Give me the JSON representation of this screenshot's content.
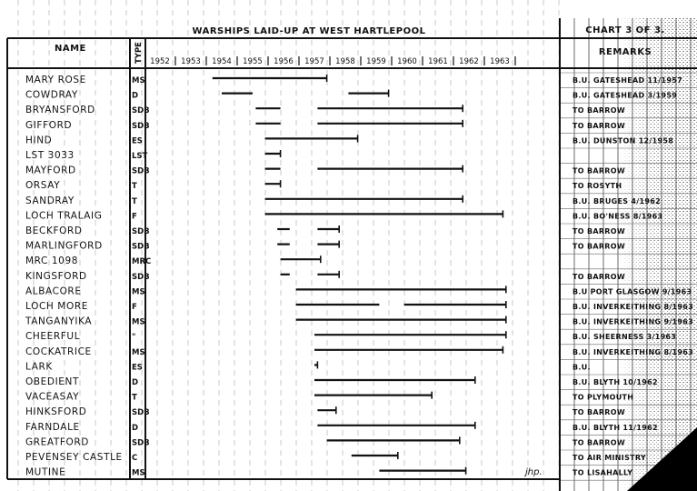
{
  "header": {
    "title": "WARSHIPS LAID-UP AT WEST HARTLEPOOL",
    "chart_number": "CHART 3 OF 3.",
    "name_col": "NAME",
    "type_col": "TYPE",
    "remarks_col": "REMARKS",
    "signature": "jhp."
  },
  "colors": {
    "ink": "#111111",
    "paper": "#ffffff",
    "stipple": "#8a8a8a"
  },
  "chart_data": {
    "type": "gantt",
    "title": "WARSHIPS LAID-UP AT WEST HARTLEPOOL",
    "xlabel": "",
    "ylabel": "",
    "x_tick_labels": [
      "1952",
      "1953",
      "1954",
      "1955",
      "1956",
      "1957",
      "1958",
      "1959",
      "1960",
      "1961",
      "1962",
      "1963"
    ],
    "xlim": [
      1952,
      1964
    ],
    "grid": true,
    "ships": [
      {
        "name": "MARY ROSE",
        "type": "MS",
        "periods": [
          [
            1954.2,
            1957.9
          ]
        ],
        "remark": "B.U. GATESHEAD 11/1957"
      },
      {
        "name": "COWDRAY",
        "type": "D",
        "periods": [
          [
            1954.5,
            1955.5
          ],
          [
            1958.6,
            1959.9
          ]
        ],
        "remark": "B.U. GATESHEAD 3/1959"
      },
      {
        "name": "BRYANSFORD",
        "type": "SDB",
        "periods": [
          [
            1955.6,
            1956.4
          ],
          [
            1957.6,
            1962.3
          ]
        ],
        "remark": "TO BARROW"
      },
      {
        "name": "GIFFORD",
        "type": "SDB",
        "periods": [
          [
            1955.6,
            1956.4
          ],
          [
            1957.6,
            1962.3
          ]
        ],
        "remark": "TO BARROW"
      },
      {
        "name": "HIND",
        "type": "ES",
        "periods": [
          [
            1955.9,
            1958.9
          ]
        ],
        "remark": "B.U. DUNSTON 12/1958"
      },
      {
        "name": "LST 3033",
        "type": "LST",
        "periods": [
          [
            1955.9,
            1956.4
          ]
        ],
        "remark": ""
      },
      {
        "name": "MAYFORD",
        "type": "SDB",
        "periods": [
          [
            1955.9,
            1956.4
          ],
          [
            1957.6,
            1962.3
          ]
        ],
        "remark": "TO BARROW"
      },
      {
        "name": "ORSAY",
        "type": "T",
        "periods": [
          [
            1955.9,
            1956.4
          ]
        ],
        "remark": "TO ROSYTH"
      },
      {
        "name": "SANDRAY",
        "type": "T",
        "periods": [
          [
            1955.9,
            1962.3
          ]
        ],
        "remark": "B.U. BRUGES 4/1962"
      },
      {
        "name": "LOCH TRALAIG",
        "type": "F",
        "periods": [
          [
            1955.9,
            1963.6
          ]
        ],
        "remark": "B.U. BO'NESS 8/1963"
      },
      {
        "name": "BECKFORD",
        "type": "SDB",
        "periods": [
          [
            1956.3,
            1956.7
          ],
          [
            1957.6,
            1958.3
          ]
        ],
        "remark": "TO BARROW"
      },
      {
        "name": "MARLINGFORD",
        "type": "SDB",
        "periods": [
          [
            1956.3,
            1956.7
          ],
          [
            1957.6,
            1958.3
          ]
        ],
        "remark": "TO BARROW"
      },
      {
        "name": "MRC 1098",
        "type": "MRC",
        "periods": [
          [
            1956.4,
            1957.7
          ]
        ],
        "remark": ""
      },
      {
        "name": "KINGSFORD",
        "type": "SDB",
        "periods": [
          [
            1956.4,
            1956.7
          ],
          [
            1957.6,
            1958.3
          ]
        ],
        "remark": "TO BARROW"
      },
      {
        "name": "ALBACORE",
        "type": "MS",
        "periods": [
          [
            1956.9,
            1963.7
          ]
        ],
        "remark": "B.U PORT GLASGOW 9/1963"
      },
      {
        "name": "LOCH MORE",
        "type": "F",
        "periods": [
          [
            1956.9,
            1959.6
          ],
          [
            1960.4,
            1963.7
          ]
        ],
        "remark": "B.U. INVERKEITHING 8/1963"
      },
      {
        "name": "TANGANYIKA",
        "type": "MS",
        "periods": [
          [
            1956.9,
            1963.7
          ]
        ],
        "remark": "B.U. INVERKEITHING 9/1963"
      },
      {
        "name": "CHEERFUL",
        "type": "\"",
        "periods": [
          [
            1957.5,
            1963.7
          ]
        ],
        "remark": "B.U. SHEERNESS 3/1963"
      },
      {
        "name": "COCKATRICE",
        "type": "MS",
        "periods": [
          [
            1957.5,
            1963.6
          ]
        ],
        "remark": "B.U. INVERKEITHING 8/1963"
      },
      {
        "name": "LARK",
        "type": "ES",
        "periods": [
          [
            1957.5,
            1957.6
          ]
        ],
        "remark": "B.U."
      },
      {
        "name": "OBEDIENT",
        "type": "D",
        "periods": [
          [
            1957.5,
            1962.7
          ]
        ],
        "remark": "B.U. BLYTH 10/1962"
      },
      {
        "name": "VACEASAY",
        "type": "T",
        "periods": [
          [
            1957.5,
            1961.3
          ]
        ],
        "remark": "TO PLYMOUTH"
      },
      {
        "name": "HINKSFORD",
        "type": "SDB",
        "periods": [
          [
            1957.6,
            1958.2
          ]
        ],
        "remark": "TO BARROW"
      },
      {
        "name": "FARNDALE",
        "type": "D",
        "periods": [
          [
            1957.6,
            1962.7
          ]
        ],
        "remark": "B.U. BLYTH 11/1962"
      },
      {
        "name": "GREATFORD",
        "type": "SDB",
        "periods": [
          [
            1957.9,
            1962.2
          ]
        ],
        "remark": "TO BARROW"
      },
      {
        "name": "PEVENSEY CASTLE",
        "type": "C",
        "periods": [
          [
            1958.7,
            1960.2
          ]
        ],
        "remark": "TO AIR MINISTRY"
      },
      {
        "name": "MUTINE",
        "type": "MS",
        "periods": [
          [
            1959.6,
            1962.4
          ]
        ],
        "remark": "TO LISAHALLY"
      }
    ]
  }
}
